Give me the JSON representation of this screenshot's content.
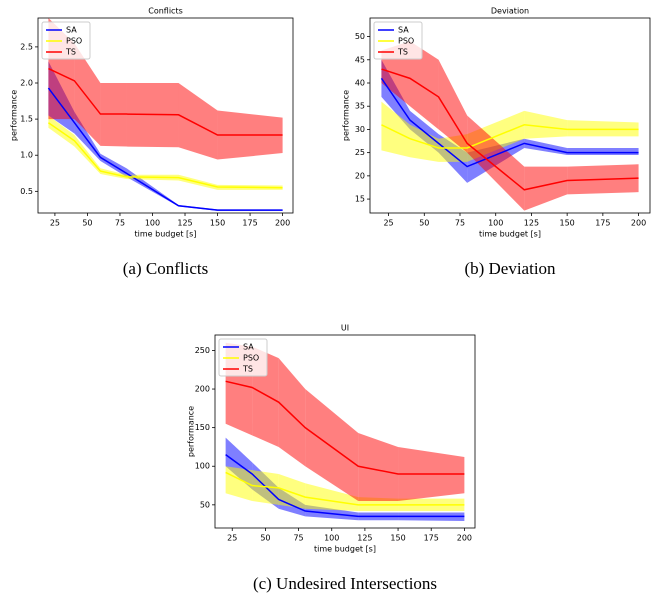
{
  "chart_data": [
    {
      "type": "line",
      "title": "Conflicts",
      "caption": "(a) Conflicts",
      "xlabel": "time budget [s]",
      "ylabel": "performance",
      "x": [
        20,
        40,
        60,
        80,
        120,
        150,
        200
      ],
      "xlim": [
        12,
        208
      ],
      "xticks": [
        25,
        50,
        75,
        100,
        125,
        150,
        175,
        200
      ],
      "ylim": [
        0.2,
        2.9
      ],
      "yticks": [
        0.5,
        {
          "value": 1,
          "label": "1.0"
        },
        1.5,
        {
          "value": 2,
          "label": "2.0"
        },
        2.5
      ],
      "legend": "upper left",
      "series": [
        {
          "name": "SA",
          "color": "#0000ff",
          "values": [
            1.93,
            1.45,
            0.97,
            0.75,
            0.3,
            0.24,
            0.24
          ],
          "lower": [
            1.55,
            1.3,
            0.92,
            0.7,
            0.29,
            0.23,
            0.23
          ],
          "upper": [
            2.3,
            1.6,
            1.02,
            0.82,
            0.31,
            0.25,
            0.25
          ]
        },
        {
          "name": "PSO",
          "color": "#ffff00",
          "values": [
            1.45,
            1.2,
            0.78,
            0.7,
            0.69,
            0.56,
            0.55
          ],
          "lower": [
            1.38,
            1.12,
            0.74,
            0.67,
            0.65,
            0.52,
            0.52
          ],
          "upper": [
            1.55,
            1.28,
            0.82,
            0.73,
            0.73,
            0.59,
            0.58
          ]
        },
        {
          "name": "TS",
          "color": "#ff0000",
          "values": [
            2.2,
            2.03,
            1.57,
            1.57,
            1.56,
            1.28,
            1.28
          ],
          "lower": [
            1.5,
            1.5,
            1.13,
            1.12,
            1.11,
            0.94,
            1.03
          ],
          "upper": [
            2.9,
            2.55,
            2.0,
            2.0,
            2.0,
            1.62,
            1.52
          ]
        }
      ]
    },
    {
      "type": "line",
      "title": "Deviation",
      "caption": "(b) Deviation",
      "xlabel": "time budget [s]",
      "ylabel": "performance",
      "x": [
        20,
        40,
        60,
        80,
        120,
        150,
        200
      ],
      "xlim": [
        12,
        208
      ],
      "xticks": [
        25,
        50,
        75,
        100,
        125,
        150,
        175,
        200
      ],
      "ylim": [
        12,
        54
      ],
      "yticks": [
        15,
        20,
        25,
        30,
        35,
        40,
        45,
        50
      ],
      "legend": "upper left",
      "series": [
        {
          "name": "SA",
          "color": "#0000ff",
          "values": [
            41,
            32,
            27,
            22,
            27,
            25,
            25
          ],
          "lower": [
            37,
            30,
            25,
            18.5,
            26,
            24.5,
            24.5
          ],
          "upper": [
            45,
            34,
            29,
            25,
            28,
            26,
            26
          ]
        },
        {
          "name": "PSO",
          "color": "#ffff00",
          "values": [
            31,
            28,
            26,
            26,
            31,
            30,
            30
          ],
          "lower": [
            25.5,
            24,
            23,
            23,
            28,
            28.5,
            28.5
          ],
          "upper": [
            36,
            31,
            28,
            29,
            34,
            32,
            31.5
          ]
        },
        {
          "name": "TS",
          "color": "#ff0000",
          "values": [
            43,
            41,
            37,
            27,
            17,
            19,
            19.5
          ],
          "lower": [
            40,
            35,
            30,
            25,
            12.5,
            16,
            16.5
          ],
          "upper": [
            47,
            49,
            45,
            33,
            22,
            22,
            22.5
          ]
        }
      ]
    },
    {
      "type": "line",
      "title": "UI",
      "caption": "(c) Undesired Intersections",
      "xlabel": "time budget [s]",
      "ylabel": "performance",
      "x": [
        20,
        40,
        60,
        80,
        120,
        150,
        200
      ],
      "xlim": [
        12,
        208
      ],
      "xticks": [
        25,
        50,
        75,
        100,
        125,
        150,
        175,
        200
      ],
      "ylim": [
        20,
        270
      ],
      "yticks": [
        50,
        100,
        150,
        200,
        250
      ],
      "legend": "upper left",
      "series": [
        {
          "name": "SA",
          "color": "#0000ff",
          "values": [
            115,
            90,
            57,
            42,
            35,
            35,
            35
          ],
          "lower": [
            100,
            70,
            45,
            35,
            30,
            30,
            29
          ],
          "upper": [
            137,
            105,
            72,
            50,
            40,
            40,
            40
          ]
        },
        {
          "name": "PSO",
          "color": "#ffff00",
          "values": [
            92,
            75,
            72,
            60,
            50,
            50,
            50
          ],
          "lower": [
            65,
            55,
            50,
            45,
            42,
            42,
            42
          ],
          "upper": [
            100,
            95,
            90,
            78,
            60,
            58,
            58
          ]
        },
        {
          "name": "TS",
          "color": "#ff0000",
          "values": [
            210,
            202,
            183,
            150,
            100,
            90,
            90
          ],
          "lower": [
            155,
            140,
            125,
            100,
            55,
            55,
            65
          ],
          "upper": [
            260,
            255,
            240,
            200,
            143,
            125,
            112
          ]
        }
      ]
    }
  ]
}
